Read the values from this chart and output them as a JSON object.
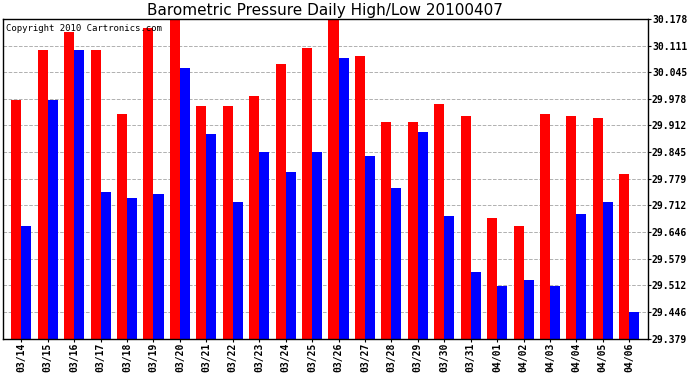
{
  "title": "Barometric Pressure Daily High/Low 20100407",
  "copyright": "Copyright 2010 Cartronics.com",
  "dates": [
    "03/14",
    "03/15",
    "03/16",
    "03/17",
    "03/18",
    "03/19",
    "03/20",
    "03/21",
    "03/22",
    "03/23",
    "03/24",
    "03/25",
    "03/26",
    "03/27",
    "03/28",
    "03/29",
    "03/30",
    "03/31",
    "04/01",
    "04/02",
    "04/03",
    "04/04",
    "04/05",
    "04/06"
  ],
  "highs": [
    29.975,
    30.1,
    30.145,
    30.1,
    29.94,
    30.155,
    30.175,
    29.96,
    29.96,
    29.985,
    30.065,
    30.105,
    30.2,
    30.085,
    29.92,
    29.92,
    29.965,
    29.935,
    29.68,
    29.66,
    29.94,
    29.935,
    29.93,
    29.79
  ],
  "lows": [
    29.66,
    29.975,
    30.1,
    29.745,
    29.73,
    29.74,
    30.055,
    29.89,
    29.72,
    29.845,
    29.795,
    29.845,
    30.08,
    29.835,
    29.755,
    29.895,
    29.685,
    29.545,
    29.51,
    29.525,
    29.51,
    29.69,
    29.72,
    29.445
  ],
  "ymin": 29.379,
  "ymax": 30.178,
  "yticks": [
    29.379,
    29.446,
    29.512,
    29.579,
    29.645,
    29.712,
    29.779,
    29.845,
    29.912,
    29.978,
    30.045,
    30.111,
    30.178
  ],
  "ytick_labels": [
    "29.379",
    "29.446",
    "29.512",
    "29.579",
    "29.646",
    "29.712",
    "29.779",
    "29.845",
    "29.912",
    "29.978",
    "30.045",
    "30.111",
    "30.178"
  ],
  "high_color": "#ff0000",
  "low_color": "#0000ff",
  "bg_color": "#ffffff",
  "grid_color": "#b0b0b0",
  "bar_width": 0.38,
  "title_fontsize": 11,
  "label_fontsize": 7,
  "copyright_fontsize": 6.5
}
